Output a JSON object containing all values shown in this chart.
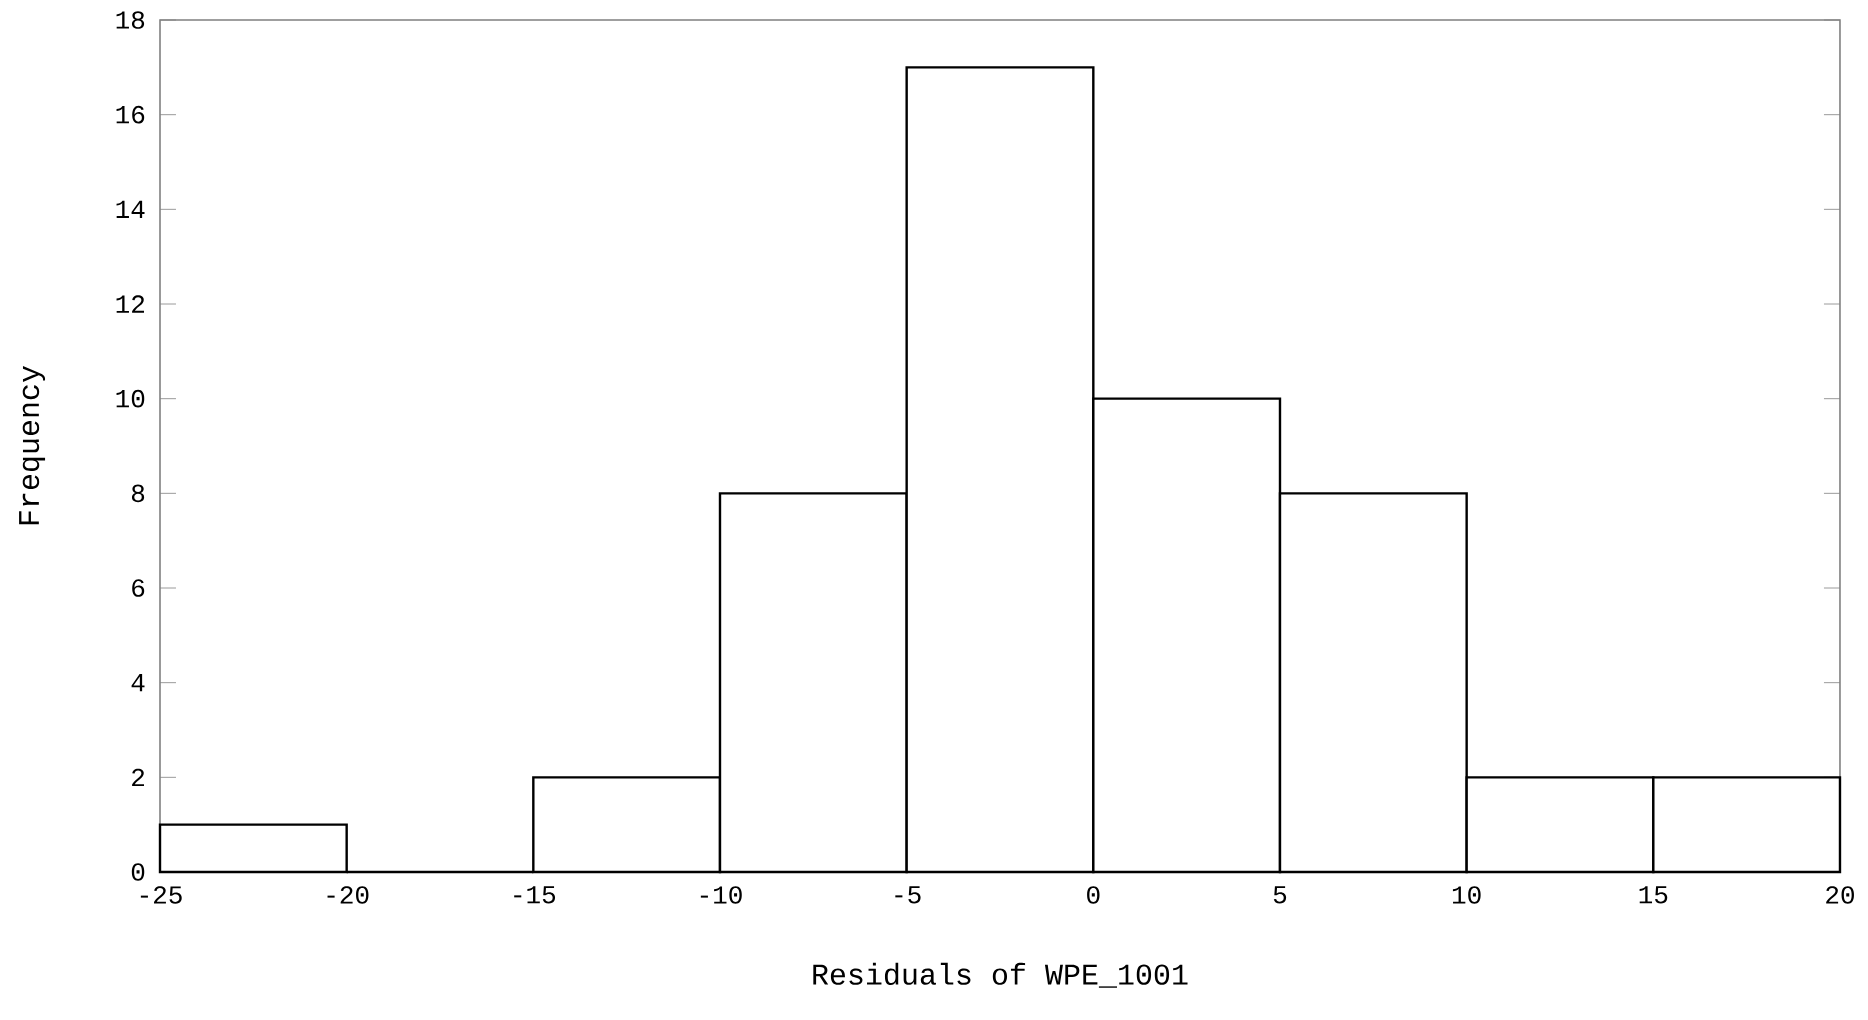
{
  "chart_data": {
    "type": "histogram",
    "xlabel": "Residuals of WPE_1001",
    "ylabel": "Frequency",
    "color": "#000000",
    "bins": [
      -25,
      -20,
      -15,
      -10,
      -5,
      0,
      5,
      10,
      15,
      20
    ],
    "values": [
      1,
      0,
      2,
      8,
      17,
      10,
      8,
      2,
      2
    ],
    "xlim": [
      -25,
      20
    ],
    "ylim": [
      0,
      18
    ],
    "xticks": [
      -25,
      -20,
      -15,
      -10,
      -5,
      0,
      5,
      10,
      15,
      20
    ],
    "yticks": [
      0,
      2,
      4,
      6,
      8,
      10,
      12,
      14,
      16,
      18
    ]
  }
}
